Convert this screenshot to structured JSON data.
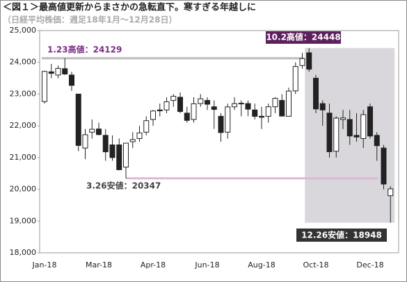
{
  "chart_data": {
    "type": "candlestick",
    "title": "＜図１＞最高値更新からまさかの急転直下。寒すぎる年越しに",
    "subtitle": "（日経平均株価：週足18年1月～12月28日）",
    "categories": [
      "Jan-18",
      null,
      null,
      null,
      null,
      null,
      null,
      null,
      "Mar-18",
      null,
      null,
      null,
      null,
      null,
      null,
      null,
      "Apr-18",
      null,
      null,
      null,
      null,
      null,
      null,
      null,
      "Jun-18",
      null,
      null,
      null,
      null,
      null,
      null,
      null,
      "Aug-18",
      null,
      null,
      null,
      null,
      null,
      null,
      null,
      "Oct-18",
      null,
      null,
      null,
      null,
      null,
      null,
      null,
      "Dec-18",
      null,
      null,
      null
    ],
    "open": [
      22764,
      23700,
      23600,
      23800,
      23600,
      23000,
      21300,
      21800,
      21900,
      21700,
      21400,
      21400,
      20700,
      21500,
      21600,
      21800,
      22200,
      22500,
      22500,
      22800,
      22900,
      22400,
      22200,
      22700,
      22800,
      22600,
      22300,
      21800,
      22600,
      22700,
      22700,
      22500,
      22300,
      22300,
      22600,
      22800,
      22300,
      23100,
      23900,
      24300,
      23500,
      22700,
      22400,
      21200,
      22200,
      22200,
      21700,
      21600,
      22600,
      21700,
      21300,
      19800
    ],
    "high": [
      23730,
      23950,
      23900,
      24129,
      23700,
      23000,
      21900,
      22200,
      22100,
      21900,
      21700,
      21600,
      21400,
      21800,
      22000,
      22300,
      22500,
      22700,
      22900,
      23000,
      23050,
      22600,
      22900,
      23000,
      22900,
      22800,
      22400,
      22700,
      22900,
      22800,
      22800,
      22700,
      22600,
      22700,
      22900,
      23000,
      23200,
      24000,
      24300,
      24448,
      23600,
      22800,
      22700,
      22300,
      22500,
      22500,
      22400,
      22500,
      22700,
      21800,
      21400,
      20100
    ],
    "low": [
      22700,
      23500,
      23500,
      23600,
      23100,
      21200,
      20950,
      21600,
      21700,
      20900,
      20900,
      20600,
      20347,
      21300,
      21500,
      21700,
      22000,
      22300,
      22400,
      22600,
      22400,
      22100,
      22100,
      22600,
      22500,
      21900,
      21500,
      21600,
      22500,
      22300,
      22300,
      22200,
      21900,
      22100,
      22400,
      22300,
      22300,
      23000,
      23800,
      23700,
      22400,
      22000,
      21000,
      21000,
      21900,
      21400,
      21500,
      21300,
      21600,
      20900,
      20000,
      18948
    ],
    "close": [
      23714,
      23653,
      23808,
      23632,
      23274,
      21382,
      21720,
      21892,
      21724,
      21181,
      21000,
      20617,
      21454,
      21567,
      21778,
      22162,
      22467,
      22472,
      22758,
      22930,
      22450,
      22171,
      22694,
      22851,
      22680,
      22516,
      21788,
      22597,
      22697,
      22712,
      22525,
      22299,
      22270,
      22601,
      22865,
      22307,
      23094,
      23869,
      24120,
      23784,
      22532,
      22500,
      21184,
      22243,
      22250,
      21680,
      21646,
      22351,
      21679,
      21374,
      20166,
      20015
    ],
    "up_color": "#ffffff",
    "down_color": "#222222",
    "ylim": [
      18000,
      25000
    ],
    "yticks": [
      {
        "value": 18000,
        "label": "18,000"
      },
      {
        "value": 19000,
        "label": "19,000"
      },
      {
        "value": 20000,
        "label": "20,000"
      },
      {
        "value": 21000,
        "label": "21,000"
      },
      {
        "value": 22000,
        "label": "22,000"
      },
      {
        "value": 23000,
        "label": "23,000"
      },
      {
        "value": 24000,
        "label": "24,000"
      },
      {
        "value": 25000,
        "label": "25,000"
      }
    ],
    "annotations": [
      {
        "text": "1.23高値：24129",
        "value": 24129,
        "index": 3
      },
      {
        "text": "10.2高値：24448",
        "value": 24448,
        "index": 39
      },
      {
        "text": "3.26安値：20347",
        "value": 20347,
        "index": 12
      },
      {
        "text": "12.26安値：18948",
        "value": 18948,
        "index": 51
      }
    ]
  }
}
